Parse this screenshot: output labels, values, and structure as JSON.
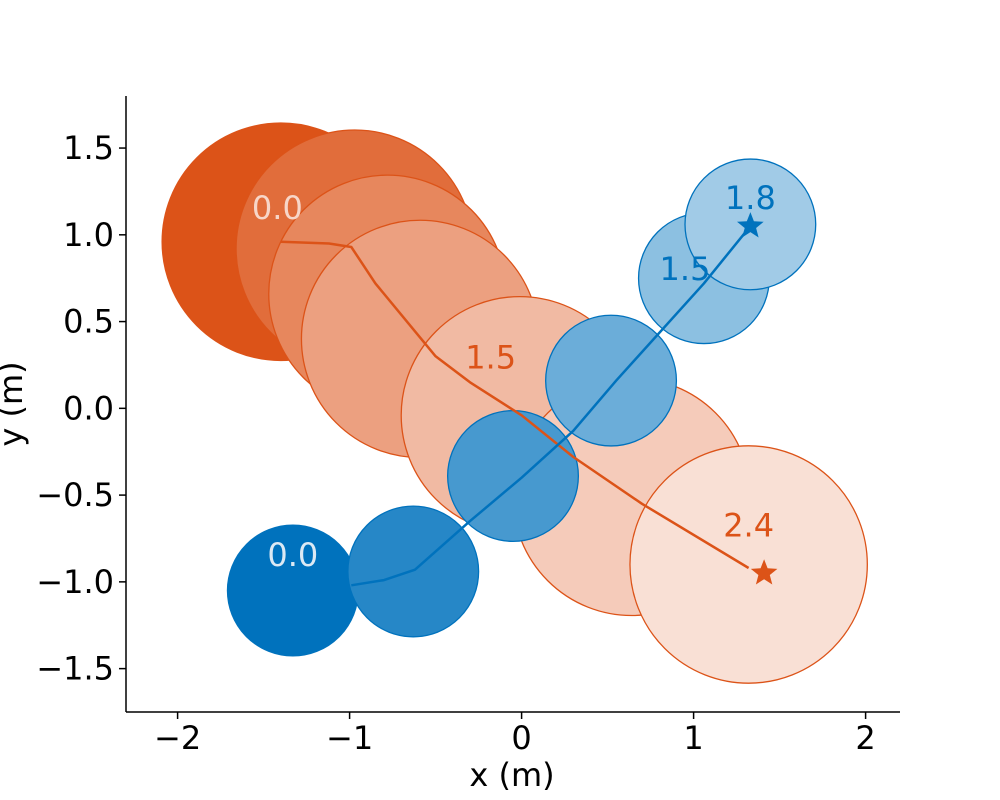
{
  "chart_data": {
    "type": "scatter",
    "title": "",
    "xlabel": "x (m)",
    "ylabel": "y (m)",
    "xlim": [
      -2.3,
      2.2
    ],
    "ylim": [
      -1.75,
      1.8
    ],
    "xticks": [
      -2,
      -1,
      0,
      1,
      2
    ],
    "yticks": [
      -1.5,
      -1.0,
      -0.5,
      0.0,
      0.5,
      1.0,
      1.5
    ],
    "xtick_labels": [
      "−2",
      "−1",
      "0",
      "1",
      "2"
    ],
    "ytick_labels": [
      "−1.5",
      "−1.0",
      "−0.5",
      "0.0",
      "0.5",
      "1.0",
      "1.5"
    ],
    "grid": false,
    "series": [
      {
        "color": "#dc5318",
        "edge_color": "#dc5318",
        "circles": [
          {
            "x": -1.4,
            "y": 0.96,
            "r": 0.69,
            "alpha": 1.0
          },
          {
            "x": -0.97,
            "y": 0.92,
            "r": 0.69,
            "alpha": 0.85
          },
          {
            "x": -0.78,
            "y": 0.66,
            "r": 0.69,
            "alpha": 0.7
          },
          {
            "x": -0.59,
            "y": 0.4,
            "r": 0.69,
            "alpha": 0.55
          },
          {
            "x": -0.01,
            "y": -0.04,
            "r": 0.69,
            "alpha": 0.4
          },
          {
            "x": 0.64,
            "y": -0.51,
            "r": 0.69,
            "alpha": 0.3
          },
          {
            "x": 1.32,
            "y": -0.9,
            "r": 0.69,
            "alpha": 0.18
          }
        ],
        "path": [
          [
            -1.4,
            0.96
          ],
          [
            -1.12,
            0.95
          ],
          [
            -0.99,
            0.93
          ],
          [
            -0.85,
            0.72
          ],
          [
            -0.5,
            0.3
          ],
          [
            -0.3,
            0.15
          ],
          [
            0.0,
            -0.04
          ],
          [
            0.3,
            -0.28
          ],
          [
            0.7,
            -0.55
          ],
          [
            1.32,
            -0.92
          ]
        ],
        "goal": {
          "x": 1.41,
          "y": -0.95
        },
        "time_labels": [
          {
            "text": "0.0",
            "x": -1.42,
            "y": 1.09,
            "color": "#f7d6c8"
          },
          {
            "text": "1.5",
            "x": -0.18,
            "y": 0.23,
            "color": "#dc5318"
          },
          {
            "text": "2.4",
            "x": 1.32,
            "y": -0.74,
            "color": "#dc5318"
          }
        ]
      },
      {
        "color": "#0072bd",
        "edge_color": "#0072bd",
        "circles": [
          {
            "x": -1.33,
            "y": -1.05,
            "r": 0.38,
            "alpha": 1.0
          },
          {
            "x": -0.63,
            "y": -0.94,
            "r": 0.38,
            "alpha": 0.85
          },
          {
            "x": -0.05,
            "y": -0.39,
            "r": 0.38,
            "alpha": 0.72
          },
          {
            "x": 0.52,
            "y": 0.16,
            "r": 0.38,
            "alpha": 0.58
          },
          {
            "x": 1.06,
            "y": 0.75,
            "r": 0.38,
            "alpha": 0.45
          },
          {
            "x": 1.33,
            "y": 1.06,
            "r": 0.38,
            "alpha": 0.37
          }
        ],
        "path": [
          [
            -0.99,
            -1.02
          ],
          [
            -0.8,
            -0.99
          ],
          [
            -0.62,
            -0.93
          ],
          [
            -0.3,
            -0.65
          ],
          [
            0.0,
            -0.4
          ],
          [
            0.3,
            -0.13
          ],
          [
            0.55,
            0.16
          ],
          [
            1.06,
            0.72
          ],
          [
            1.33,
            1.05
          ]
        ],
        "goal": {
          "x": 1.33,
          "y": 1.05
        },
        "time_labels": [
          {
            "text": "0.0",
            "x": -1.33,
            "y": -0.91,
            "color": "#dce9f4"
          },
          {
            "text": "1.5",
            "x": 0.95,
            "y": 0.74,
            "color": "#0072bd"
          },
          {
            "text": "1.8",
            "x": 1.33,
            "y": 1.15,
            "color": "#0072bd"
          }
        ]
      }
    ]
  }
}
